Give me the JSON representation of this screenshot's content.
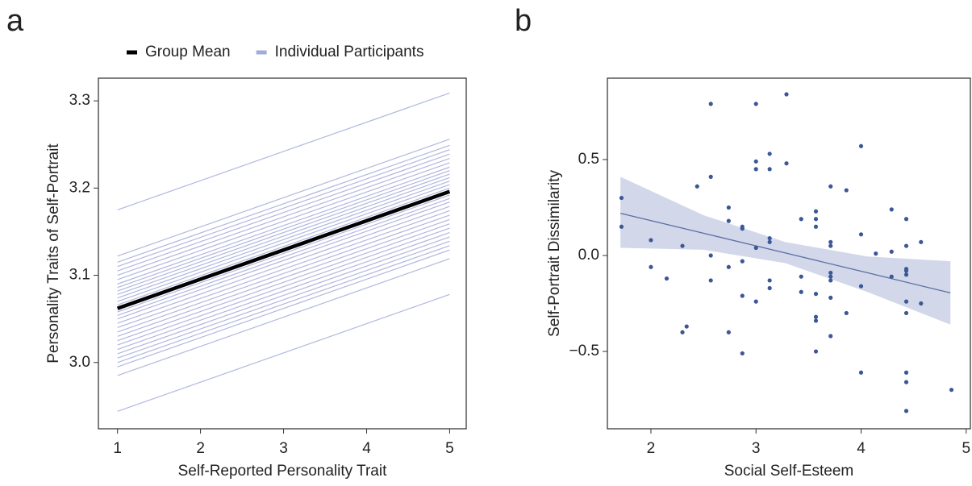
{
  "chart_data": [
    {
      "type": "line",
      "label": "a",
      "xlabel": "Self-Reported Personality Trait",
      "ylabel": "Personality Traits of Self-Portrait",
      "x": [
        1,
        5
      ],
      "xlim": [
        0.77,
        5.2
      ],
      "ylim": [
        2.924,
        3.326
      ],
      "xticks": [
        1,
        2,
        3,
        4,
        5
      ],
      "yticks": [
        {
          "value": 3,
          "label": "3.0"
        },
        3.1,
        3.2,
        3.3
      ],
      "legend": "top",
      "series": [
        {
          "name": "Group Mean",
          "color": "#000000",
          "values": [
            3.062,
            3.196
          ]
        },
        {
          "name": "Individual Participants",
          "color": "#a3acd8",
          "values": [
            [
              3.175,
              3.309
            ],
            [
              3.122,
              3.256
            ],
            [
              3.115,
              3.249
            ],
            [
              3.11,
              3.244
            ],
            [
              3.105,
              3.239
            ],
            [
              3.1,
              3.234
            ],
            [
              3.095,
              3.229
            ],
            [
              3.09,
              3.224
            ],
            [
              3.086,
              3.22
            ],
            [
              3.082,
              3.216
            ],
            [
              3.078,
              3.212
            ],
            [
              3.074,
              3.208
            ],
            [
              3.07,
              3.204
            ],
            [
              3.066,
              3.2
            ],
            [
              3.062,
              3.196
            ],
            [
              3.058,
              3.192
            ],
            [
              3.054,
              3.188
            ],
            [
              3.05,
              3.184
            ],
            [
              3.045,
              3.179
            ],
            [
              3.04,
              3.174
            ],
            [
              3.035,
              3.169
            ],
            [
              3.03,
              3.164
            ],
            [
              3.025,
              3.159
            ],
            [
              3.02,
              3.154
            ],
            [
              3.015,
              3.149
            ],
            [
              3.01,
              3.144
            ],
            [
              3.005,
              3.139
            ],
            [
              3.0,
              3.134
            ],
            [
              2.995,
              3.129
            ],
            [
              2.985,
              3.119
            ],
            [
              2.944,
              3.078
            ]
          ]
        }
      ]
    },
    {
      "type": "scatter",
      "label": "b",
      "xlabel": "Social Self-Esteem",
      "ylabel": "Self-Portrait Dissimilarity",
      "xlim": [
        1.586,
        5.04
      ],
      "ylim": [
        -0.903,
        0.924
      ],
      "xticks": [
        2,
        3,
        4,
        5
      ],
      "yticks": [
        {
          "value": -0.5,
          "label": "−0.5"
        },
        {
          "value": 0,
          "label": "0.0"
        },
        0.5
      ],
      "color": "#3b5796",
      "x": [
        1.72,
        1.72,
        2.0,
        2.0,
        2.15,
        2.3,
        2.34,
        2.3,
        2.44,
        2.57,
        2.57,
        2.57,
        2.57,
        2.74,
        2.74,
        2.74,
        2.74,
        2.87,
        2.87,
        2.87,
        2.87,
        2.87,
        3.0,
        3.0,
        3.0,
        3.0,
        3.0,
        3.13,
        3.13,
        3.13,
        3.13,
        3.13,
        3.13,
        3.29,
        3.29,
        3.43,
        3.43,
        3.43,
        3.57,
        3.57,
        3.57,
        3.57,
        3.57,
        3.57,
        3.57,
        3.71,
        3.71,
        3.71,
        3.71,
        3.71,
        3.71,
        3.71,
        3.71,
        3.86,
        3.86,
        4.0,
        4.0,
        4.0,
        4.0,
        4.14,
        4.29,
        4.29,
        4.29,
        4.43,
        4.43,
        4.43,
        4.43,
        4.43,
        4.43,
        4.43,
        4.43,
        4.43,
        4.43,
        4.57,
        4.57,
        4.86
      ],
      "values": [
        0.3,
        0.15,
        0.08,
        -0.06,
        -0.12,
        -0.4,
        -0.37,
        0.05,
        0.36,
        0.79,
        0.41,
        0.0,
        -0.13,
        0.25,
        0.18,
        -0.06,
        -0.4,
        0.15,
        0.14,
        -0.03,
        -0.21,
        -0.51,
        0.79,
        0.49,
        0.45,
        0.04,
        -0.24,
        0.53,
        0.45,
        0.09,
        0.07,
        -0.13,
        -0.17,
        0.84,
        0.48,
        0.19,
        -0.11,
        -0.19,
        0.23,
        0.19,
        0.15,
        -0.2,
        -0.32,
        -0.34,
        -0.5,
        0.36,
        0.07,
        0.05,
        -0.09,
        -0.11,
        -0.13,
        -0.22,
        -0.42,
        0.34,
        -0.3,
        0.57,
        0.11,
        -0.16,
        -0.61,
        0.01,
        0.24,
        0.02,
        -0.11,
        0.19,
        0.05,
        -0.07,
        -0.08,
        -0.1,
        -0.24,
        -0.3,
        -0.61,
        -0.66,
        -0.81,
        0.07,
        -0.25,
        -0.7
      ],
      "fit": {
        "color": "#5a6fa3",
        "band_color": "#cdd3e8",
        "x": [
          1.71,
          2.5,
          3.28,
          4.06,
          4.85
        ],
        "values": [
          0.22,
          0.116,
          0.013,
          -0.09,
          -0.195
        ],
        "upper": [
          0.41,
          0.21,
          0.07,
          -0.005,
          -0.03
        ],
        "lower": [
          0.04,
          0.03,
          -0.04,
          -0.19,
          -0.36
        ]
      }
    }
  ]
}
